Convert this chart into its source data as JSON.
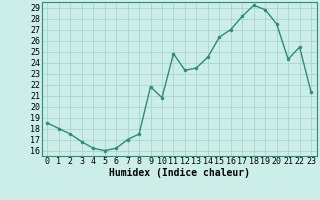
{
  "x": [
    0,
    1,
    2,
    3,
    4,
    5,
    6,
    7,
    8,
    9,
    10,
    11,
    12,
    13,
    14,
    15,
    16,
    17,
    18,
    19,
    20,
    21,
    22,
    23
  ],
  "y": [
    18.5,
    18.0,
    17.5,
    16.8,
    16.2,
    16.0,
    16.2,
    17.0,
    17.5,
    21.8,
    20.8,
    24.8,
    23.3,
    23.5,
    24.5,
    26.3,
    27.0,
    28.2,
    29.2,
    28.8,
    27.5,
    24.3,
    25.4,
    21.3
  ],
  "line_color": "#2e8b7a",
  "marker": "o",
  "marker_size": 2.0,
  "bg_color": "#cceee8",
  "grid_color": "#aad4ce",
  "xlabel": "Humidex (Indice chaleur)",
  "xlim": [
    -0.5,
    23.5
  ],
  "ylim": [
    15.5,
    29.5
  ],
  "yticks": [
    16,
    17,
    18,
    19,
    20,
    21,
    22,
    23,
    24,
    25,
    26,
    27,
    28,
    29
  ],
  "xticks": [
    0,
    1,
    2,
    3,
    4,
    5,
    6,
    7,
    8,
    9,
    10,
    11,
    12,
    13,
    14,
    15,
    16,
    17,
    18,
    19,
    20,
    21,
    22,
    23
  ],
  "label_fontsize": 7,
  "tick_fontsize": 6,
  "linewidth": 1.0
}
